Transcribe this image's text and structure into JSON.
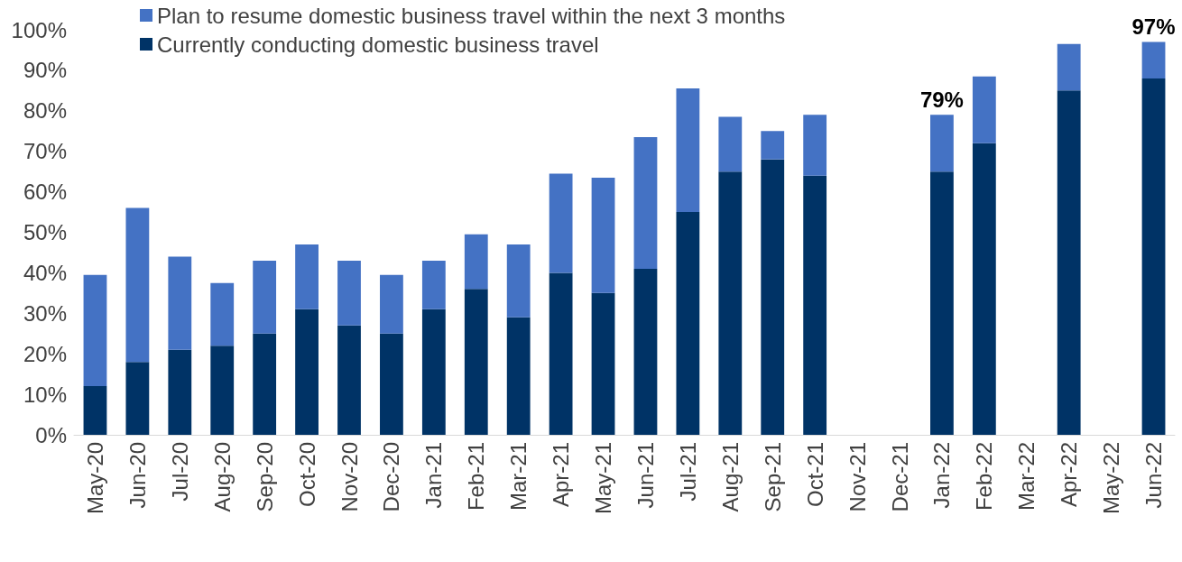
{
  "chart_data": {
    "type": "bar",
    "stacked": true,
    "categories": [
      "May-20",
      "Jun-20",
      "Jul-20",
      "Aug-20",
      "Sep-20",
      "Oct-20",
      "Nov-20",
      "Dec-20",
      "Jan-21",
      "Feb-21",
      "Mar-21",
      "Apr-21",
      "May-21",
      "Jun-21",
      "Jul-21",
      "Aug-21",
      "Sep-21",
      "Oct-21",
      "Nov-21",
      "Dec-21",
      "Jan-22",
      "Feb-22",
      "Mar-22",
      "Apr-22",
      "May-22",
      "Jun-22"
    ],
    "series": [
      {
        "name": "Currently conducting domestic business travel",
        "color": "#003366",
        "values": [
          12,
          18,
          21,
          22,
          25,
          31,
          27,
          25,
          31,
          36,
          29,
          40,
          35,
          41,
          55,
          65,
          68,
          64,
          null,
          null,
          65,
          72,
          null,
          85,
          null,
          88
        ]
      },
      {
        "name": "Plan to resume domestic business travel within the next 3 months",
        "color": "#4472c4",
        "values": [
          27.5,
          38,
          23,
          15.5,
          18,
          16,
          16,
          14.5,
          12,
          13.5,
          18,
          24.5,
          28.5,
          32.5,
          30.5,
          13.5,
          7,
          15,
          null,
          null,
          14,
          16.5,
          null,
          11.5,
          null,
          9
        ]
      }
    ],
    "totals": [
      null,
      null,
      null,
      null,
      null,
      null,
      null,
      null,
      null,
      null,
      null,
      null,
      null,
      null,
      null,
      null,
      null,
      null,
      null,
      null,
      "79%",
      null,
      null,
      null,
      null,
      "97%"
    ],
    "ylim": [
      0,
      100
    ],
    "yticks": [
      {
        "value": 0,
        "label": "0%"
      },
      {
        "value": 10,
        "label": "10%"
      },
      {
        "value": 20,
        "label": "20%"
      },
      {
        "value": 30,
        "label": "30%"
      },
      {
        "value": 40,
        "label": "40%"
      },
      {
        "value": 50,
        "label": "50%"
      },
      {
        "value": 60,
        "label": "60%"
      },
      {
        "value": 70,
        "label": "70%"
      },
      {
        "value": 80,
        "label": "80%"
      },
      {
        "value": 90,
        "label": "90%"
      },
      {
        "value": 100,
        "label": "100%"
      }
    ],
    "grid": false,
    "legend": "top left"
  }
}
